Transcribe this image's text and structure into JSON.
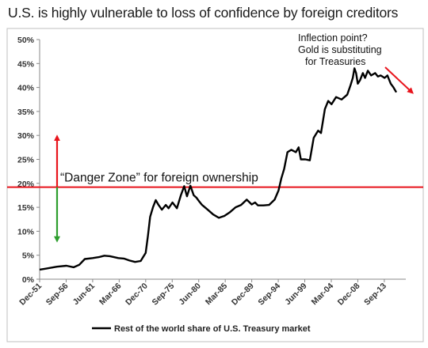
{
  "page_title": "U.S. is highly vulnerable to loss of confidence by foreign creditors",
  "chart_data": {
    "type": "line",
    "title": "U.S. is highly vulnerable to loss of confidence by foreign creditors",
    "xlabel": "",
    "ylabel": "",
    "y_ticks": [
      "0%",
      "5%",
      "10%",
      "15%",
      "20%",
      "25%",
      "30%",
      "35%",
      "40%",
      "45%",
      "50%"
    ],
    "ylim": [
      0,
      50
    ],
    "x_ticks": [
      "Dec-51",
      "Sep-56",
      "Jun-61",
      "Mar-66",
      "Dec-70",
      "Sep-75",
      "Jun-80",
      "Mar-85",
      "Dec-89",
      "Sep-94",
      "Jun-99",
      "Mar-04",
      "Dec-08",
      "Sep-13"
    ],
    "xlim": [
      1951.9,
      2017.5
    ],
    "grid": false,
    "legend_position": "bottom",
    "series": [
      {
        "name": "Rest of the world share of U.S. Treasury market",
        "color": "#000000",
        "x": [
          1951.9,
          1953,
          1955,
          1956.7,
          1958,
          1959,
          1960,
          1961.4,
          1962.5,
          1963.5,
          1964.5,
          1966,
          1967,
          1968,
          1969,
          1970,
          1970.9,
          1971.3,
          1971.7,
          1972.2,
          1972.7,
          1973.2,
          1973.8,
          1974.5,
          1975,
          1975.7,
          1976.5,
          1977.2,
          1977.8,
          1978.3,
          1978.9,
          1979.5,
          1980,
          1980.5,
          1981,
          1982,
          1983,
          1984,
          1985,
          1986,
          1987,
          1988,
          1989,
          1989.9,
          1990.5,
          1991,
          1992,
          1993,
          1994,
          1994.7,
          1995.2,
          1995.7,
          1996.3,
          1997,
          1997.8,
          1998.3,
          1998.7,
          1999.5,
          2000.3,
          2001,
          2001.8,
          2002.3,
          2003,
          2003.6,
          2004.2,
          2005,
          2006,
          2007,
          2007.6,
          2008,
          2008.3,
          2008.6,
          2008.9,
          2009.3,
          2009.8,
          2010.2,
          2010.7,
          2011.3,
          2012,
          2012.5,
          2013,
          2013.7,
          2014.2,
          2014.8,
          2015.3,
          2015.8
        ],
        "values": [
          2,
          2.2,
          2.6,
          2.8,
          2.5,
          3,
          4.2,
          4.4,
          4.6,
          4.9,
          4.8,
          4.4,
          4.3,
          3.9,
          3.6,
          3.8,
          5.5,
          9,
          13,
          15,
          16.5,
          15.5,
          14.5,
          15.5,
          14.8,
          16,
          14.8,
          17.5,
          19.4,
          17.3,
          19.5,
          17.5,
          17,
          16.2,
          15.5,
          14.5,
          13.5,
          12.8,
          13.2,
          14,
          15,
          15.5,
          16.6,
          15.6,
          16,
          15.4,
          15.4,
          15.5,
          16.6,
          18.5,
          21,
          23,
          26.5,
          27,
          26.5,
          27.5,
          25,
          25,
          24.8,
          29.5,
          31,
          30.5,
          35.5,
          37.2,
          36.5,
          38,
          37.5,
          38.5,
          40.5,
          42,
          44,
          43,
          40.8,
          41.5,
          43,
          42,
          43.5,
          42.5,
          43,
          42.3,
          42.5,
          42,
          42.5,
          40.8,
          40,
          39
        ]
      }
    ],
    "reference_line": {
      "value": 19.2,
      "color": "#e8141c"
    },
    "annotations": {
      "danger_zone": "“Danger Zone” for foreign ownership",
      "inflection_lines": [
        "Inflection point?",
        "Gold is substituting",
        "for Treasuries"
      ],
      "up_arrow_color": "#e8141c",
      "down_arrow_color": "#2e9e2e",
      "trend_arrow_color": "#e8141c"
    }
  }
}
